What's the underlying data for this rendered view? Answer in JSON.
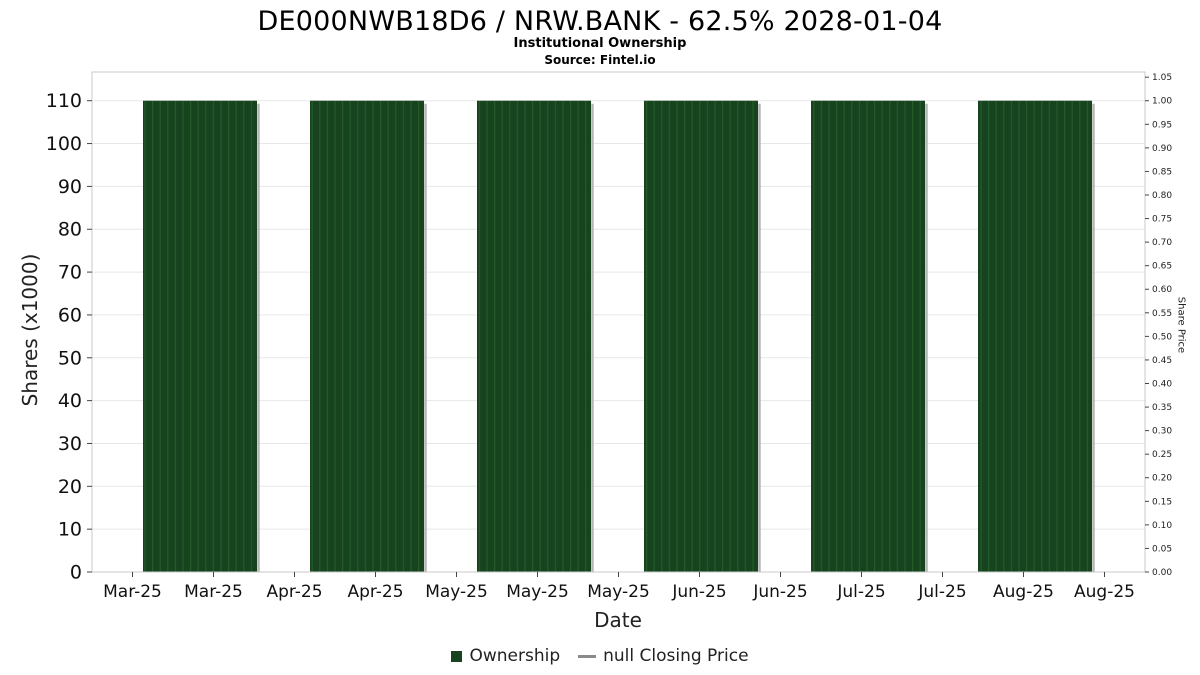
{
  "chart_data": {
    "type": "bar",
    "title": "DE000NWB18D6 / NRW.BANK - 62.5% 2028-01-04",
    "subtitle": "Institutional Ownership",
    "source": "Source: Fintel.io",
    "xlabel": "Date",
    "ylabel": "Shares (x1000)",
    "ylabel_right": "Share Price",
    "x_tick_labels": [
      "Mar-25",
      "Mar-25",
      "Apr-25",
      "Apr-25",
      "May-25",
      "May-25",
      "May-25",
      "Jun-25",
      "Jun-25",
      "Jul-25",
      "Jul-25",
      "Aug-25",
      "Aug-25"
    ],
    "y_left_ticks": [
      0,
      10,
      20,
      30,
      40,
      50,
      60,
      70,
      80,
      90,
      100,
      110
    ],
    "y_left_lim": [
      0,
      116.7
    ],
    "y_right_ticks": [
      "0.00",
      "0.05",
      "0.10",
      "0.15",
      "0.20",
      "0.25",
      "0.30",
      "0.35",
      "0.40",
      "0.45",
      "0.50",
      "0.55",
      "0.60",
      "0.65",
      "0.70",
      "0.75",
      "0.80",
      "0.85",
      "0.90",
      "0.95",
      "1.00",
      "1.05"
    ],
    "y_right_lim": [
      0,
      1.061
    ],
    "grid": true,
    "legend_position": "bottom",
    "series": [
      {
        "name": "Ownership",
        "type": "bar",
        "color": "#17431e",
        "stripe_color": "#245c2c",
        "values": [
          110,
          110,
          110,
          110,
          110,
          110
        ]
      },
      {
        "name": "null Closing Price",
        "type": "line",
        "color": "#8a8a8a",
        "values": []
      }
    ],
    "legend": [
      {
        "label": "Ownership",
        "marker": "square",
        "color": "#17431e"
      },
      {
        "label": "null Closing Price",
        "marker": "line",
        "color": "#8a8a8a"
      }
    ]
  }
}
